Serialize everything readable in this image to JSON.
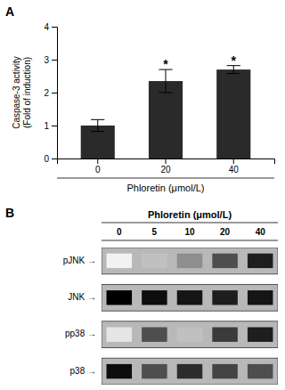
{
  "chart_data": [
    {
      "type": "bar",
      "panel_label": "A",
      "categories": [
        "0",
        "20",
        "40"
      ],
      "values": [
        1.0,
        2.35,
        2.7
      ],
      "errors": [
        0.18,
        0.35,
        0.12
      ],
      "color": "#2a2a2a",
      "ylabel": "Caspase-3 activity\n(Fold of induction)",
      "xlabel": "Phloretin (μmol/L)",
      "ylim": [
        0,
        4
      ],
      "yticks": [
        0,
        1,
        2,
        3,
        4
      ],
      "annotations": [
        {
          "text": "*",
          "category": "20"
        },
        {
          "text": "*",
          "category": "40"
        }
      ]
    },
    {
      "type": "heatmap",
      "panel_label": "B",
      "title": "Phloretin (μmol/L)",
      "categories": [
        "0",
        "5",
        "10",
        "20",
        "40"
      ],
      "rows": [
        "pJNK →",
        "JNK →",
        "pp38 →",
        "p38 →"
      ],
      "cells": [
        [
          0.12,
          0.3,
          0.42,
          0.58,
          0.68
        ],
        [
          0.75,
          0.72,
          0.7,
          0.68,
          0.7
        ],
        [
          0.18,
          0.58,
          0.3,
          0.62,
          0.68
        ],
        [
          0.72,
          0.58,
          0.65,
          0.6,
          0.58
        ]
      ]
    }
  ]
}
